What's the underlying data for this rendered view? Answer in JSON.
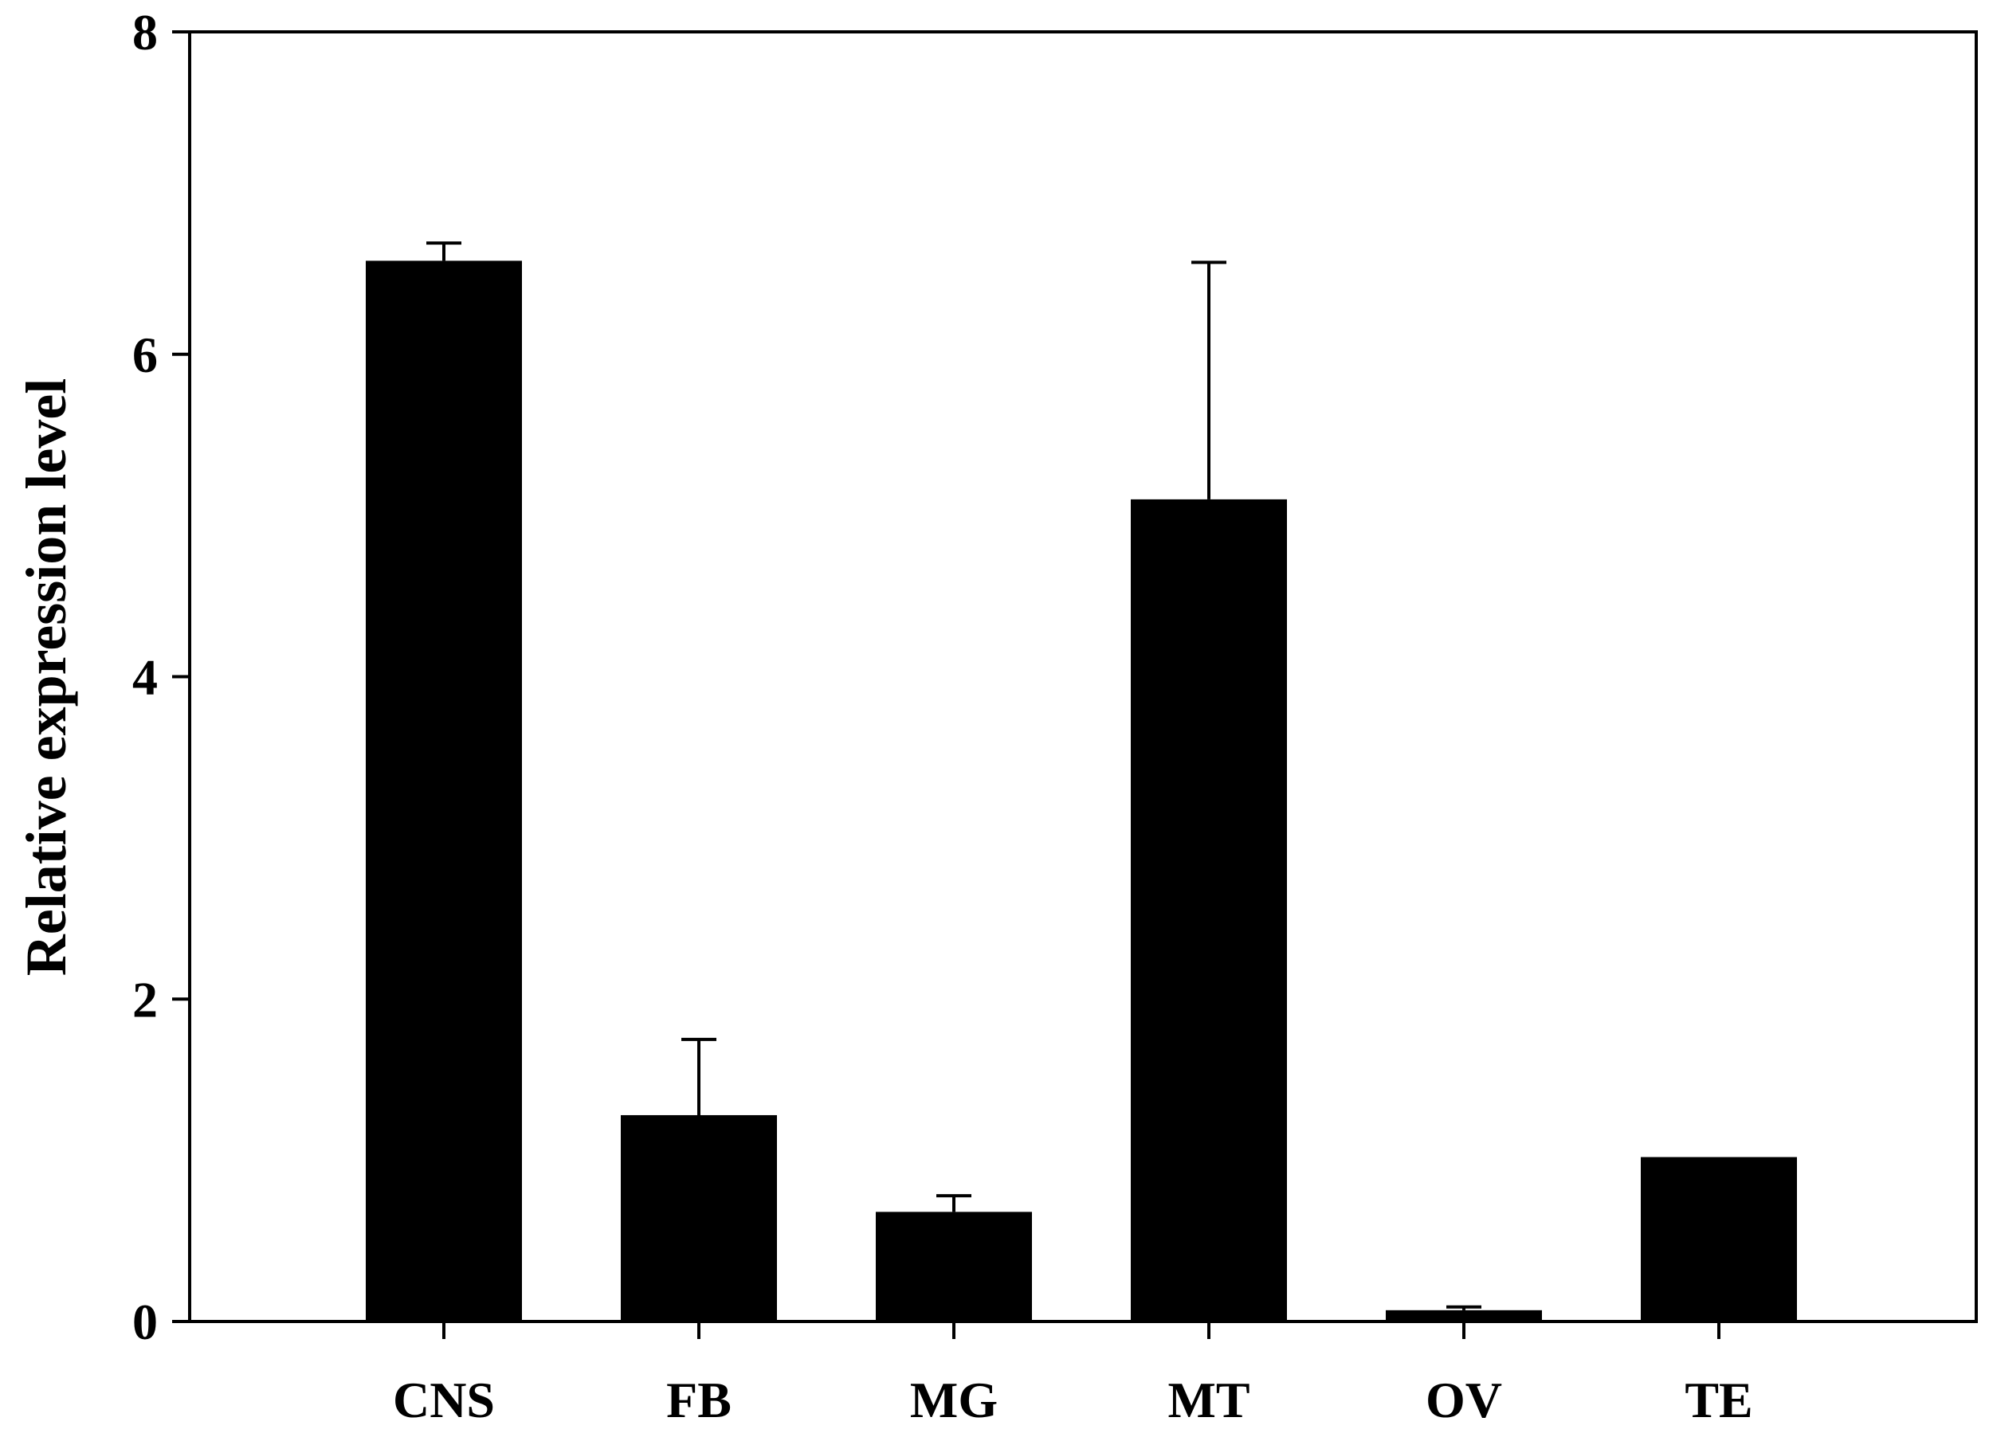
{
  "chart_data": {
    "type": "bar",
    "categories": [
      "CNS",
      "FB",
      "MG",
      "MT",
      "OV",
      "TE"
    ],
    "values": [
      6.58,
      1.28,
      0.68,
      5.1,
      0.07,
      1.02
    ],
    "errors": [
      0.11,
      0.47,
      0.1,
      1.47,
      0.02,
      0.0
    ],
    "ylabel": "Relative expression level",
    "xlabel": "",
    "ylim": [
      0,
      8
    ],
    "yticks": [
      "0",
      "2",
      "4",
      "6",
      "8"
    ],
    "bar_color": "#000000",
    "grid": false
  }
}
